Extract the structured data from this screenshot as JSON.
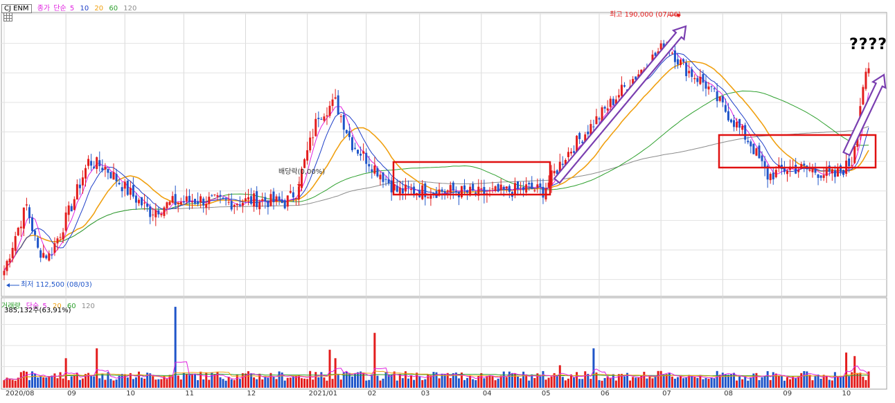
{
  "header": {
    "stock_name": "CJ ENM",
    "price_label": "종가",
    "ma_type": "단순",
    "ma_periods": [
      "5",
      "10",
      "20",
      "60",
      "120"
    ],
    "grid_icon": "grid-icon"
  },
  "volume_header": {
    "label": "거래량",
    "ma_type": "단순",
    "ma_periods": [
      "5",
      "20",
      "60",
      "120"
    ],
    "value_text": "385,132주(63,91%)"
  },
  "annotations": {
    "high": "최고 190,000 (07/06)",
    "low": "최저 112,500 (08/03)",
    "dividend": "배당락(0,00%)",
    "question": "????"
  },
  "colors": {
    "up": "#e31d1d",
    "down": "#1f55c9",
    "ma5": "#e020e0",
    "ma10": "#1f3fc8",
    "ma20": "#f0a010",
    "ma60": "#2ea02e",
    "ma120": "#8c8c8c",
    "highlight_box": "#e01010",
    "arrow": "#7a3fb0"
  },
  "chart_data": {
    "type": "candlestick",
    "title": "CJ ENM",
    "price_range": [
      105000,
      200000
    ],
    "x_ticks": [
      "2020/08",
      "09",
      "10",
      "11",
      "12",
      "2021/01",
      "02",
      "03",
      "04",
      "05",
      "06",
      "07",
      "08",
      "09",
      "10"
    ],
    "price_path": [
      [
        0,
        113000
      ],
      [
        4,
        125000
      ],
      [
        8,
        135000
      ],
      [
        12,
        120000
      ],
      [
        16,
        118000
      ],
      [
        20,
        126000
      ],
      [
        24,
        135000
      ],
      [
        30,
        150000
      ],
      [
        36,
        148000
      ],
      [
        44,
        140000
      ],
      [
        52,
        133000
      ],
      [
        60,
        136000
      ],
      [
        70,
        137000
      ],
      [
        80,
        136000
      ],
      [
        90,
        137000
      ],
      [
        100,
        136000
      ],
      [
        104,
        140000
      ],
      [
        112,
        166000
      ],
      [
        118,
        170000
      ],
      [
        124,
        156000
      ],
      [
        132,
        148000
      ],
      [
        140,
        140000
      ],
      [
        150,
        140000
      ],
      [
        160,
        140000
      ],
      [
        170,
        139000
      ],
      [
        180,
        140000
      ],
      [
        186,
        141000
      ],
      [
        192,
        140000
      ],
      [
        200,
        152000
      ],
      [
        210,
        163000
      ],
      [
        220,
        174000
      ],
      [
        230,
        184000
      ],
      [
        236,
        190000
      ],
      [
        242,
        182000
      ],
      [
        250,
        176000
      ],
      [
        258,
        166000
      ],
      [
        266,
        156000
      ],
      [
        272,
        145000
      ],
      [
        280,
        148000
      ],
      [
        288,
        147000
      ],
      [
        296,
        145000
      ],
      [
        302,
        150000
      ],
      [
        306,
        176000
      ],
      [
        308,
        180000
      ]
    ],
    "volume_range": [
      0,
      1200000
    ],
    "highlight_boxes": 2,
    "trend_arrows": 2
  }
}
